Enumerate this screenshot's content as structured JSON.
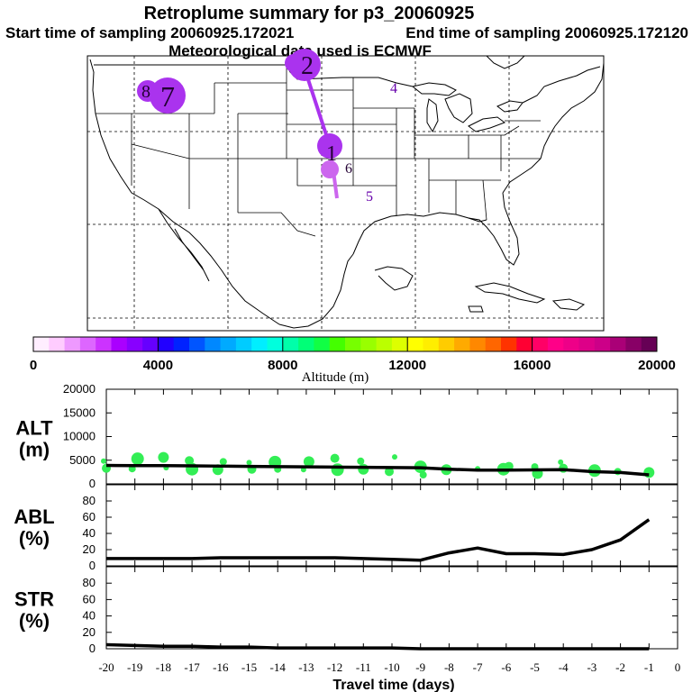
{
  "header": {
    "title": "Retroplume summary for p3_20060925",
    "start_sampling": "Start time of sampling 20060925.172021",
    "end_sampling": "End time of sampling 20060925.172120",
    "met_data": "Meteorological data used is ECMWF"
  },
  "colors": {
    "line": "#000000",
    "alt_points": "#33ee55",
    "plume": "#aa33ee",
    "plume_light": "#cc66ee"
  },
  "map": {
    "plume_labels": [
      {
        "id": "1",
        "color": "#aa33ee"
      },
      {
        "id": "2",
        "color": "#aa33ee"
      },
      {
        "id": "4",
        "color": "#aa33ee"
      },
      {
        "id": "5",
        "color": "#aa33ee"
      },
      {
        "id": "6",
        "color": "#aa33ee"
      },
      {
        "id": "7",
        "color": "#aa33ee"
      },
      {
        "id": "8",
        "color": "#aa33ee"
      }
    ]
  },
  "colorbar": {
    "label": "Altitude (m)",
    "min": 0,
    "max": 20000,
    "ticks": [
      "0",
      "4000",
      "8000",
      "12000",
      "16000",
      "20000"
    ],
    "colors": [
      "#ffeeff",
      "#ffccff",
      "#ee99ff",
      "#dd66ff",
      "#cc33ff",
      "#aa00ff",
      "#8800ff",
      "#6600ff",
      "#2200ff",
      "#0022ff",
      "#0055ff",
      "#0088ff",
      "#00aaff",
      "#00ccff",
      "#00eeff",
      "#00ffdd",
      "#00ffaa",
      "#00ff77",
      "#11ff44",
      "#44ff00",
      "#77ff00",
      "#99ff00",
      "#bbff00",
      "#ddff00",
      "#ffff00",
      "#ffee00",
      "#ffcc00",
      "#ffaa00",
      "#ff8800",
      "#ff6600",
      "#ff3300",
      "#ff0033",
      "#ff0066",
      "#ff0088",
      "#ee0088",
      "#dd0088",
      "#cc0088",
      "#aa0077",
      "#880066",
      "#660055"
    ]
  },
  "chart_data": [
    {
      "type": "line",
      "title": "ALT",
      "ylabel": "ALT (m)",
      "ylabel_lines": [
        "ALT",
        "(m)"
      ],
      "xlabel": "Travel time (days)",
      "ylim": [
        0,
        20000
      ],
      "yticks": [
        0,
        5000,
        10000,
        15000,
        20000
      ],
      "series": [
        {
          "name": "mean altitude",
          "x": [
            -20,
            -19,
            -18,
            -17,
            -16,
            -15,
            -14,
            -13,
            -12,
            -11,
            -10,
            -9,
            -8,
            -7,
            -6,
            -5,
            -4,
            -3,
            -2,
            -1
          ],
          "values": [
            3900,
            3850,
            3850,
            3800,
            3750,
            3700,
            3650,
            3600,
            3550,
            3500,
            3450,
            3400,
            3100,
            2900,
            2900,
            2950,
            3000,
            2600,
            2400,
            1900
          ]
        },
        {
          "name": "altitude scatter",
          "type": "scatter",
          "x": [
            -20,
            -20,
            -19,
            -19,
            -18,
            -18,
            -17,
            -17,
            -16,
            -16,
            -15,
            -15,
            -14,
            -14,
            -13,
            -13,
            -12,
            -12,
            -11,
            -11,
            -10,
            -10,
            -9,
            -9,
            -8,
            -7,
            -6,
            -6,
            -5,
            -5,
            -4,
            -4,
            -3,
            -2,
            -1
          ],
          "values": [
            4800,
            3300,
            5300,
            3200,
            5600,
            3400,
            4900,
            3100,
            4700,
            3000,
            4500,
            3100,
            4600,
            3100,
            4700,
            3000,
            5400,
            3000,
            4800,
            3100,
            5700,
            2600,
            3600,
            1900,
            3000,
            3200,
            3700,
            3100,
            3600,
            2200,
            4600,
            3300,
            2800,
            2600,
            2400
          ]
        }
      ]
    },
    {
      "type": "line",
      "title": "ABL",
      "ylabel": "ABL (%)",
      "ylabel_lines": [
        "ABL",
        "(%)"
      ],
      "ylim": [
        0,
        100
      ],
      "yticks": [
        0,
        20,
        40,
        60,
        80
      ],
      "series": [
        {
          "name": "ABL fraction",
          "x": [
            -20,
            -19,
            -18,
            -17,
            -16,
            -15,
            -14,
            -13,
            -12,
            -11,
            -10,
            -9,
            -8,
            -7,
            -6,
            -5,
            -4,
            -3,
            -2,
            -1
          ],
          "values": [
            9,
            9,
            9,
            9,
            10,
            10,
            10,
            10,
            10,
            9,
            8,
            7,
            16,
            22,
            15,
            15,
            14,
            20,
            32,
            57
          ]
        }
      ]
    },
    {
      "type": "line",
      "title": "STR",
      "ylabel": "STR (%)",
      "ylabel_lines": [
        "STR",
        "(%)"
      ],
      "xlabel": "Travel time (days)",
      "xlim": [
        -20,
        0
      ],
      "xticks": [
        "-20",
        "-19",
        "-18",
        "-17",
        "-16",
        "-15",
        "-14",
        "-13",
        "-12",
        "-11",
        "-10",
        "-9",
        "-8",
        "-7",
        "-6",
        "-5",
        "-4",
        "-3",
        "-2",
        "-1",
        "0"
      ],
      "ylim": [
        0,
        100
      ],
      "yticks": [
        0,
        20,
        40,
        60,
        80
      ],
      "series": [
        {
          "name": "stratospheric fraction",
          "x": [
            -20,
            -19,
            -18,
            -17,
            -16,
            -15,
            -14,
            -13,
            -12,
            -11,
            -10,
            -9,
            -8,
            -7,
            -6,
            -5,
            -4,
            -3,
            -2,
            -1
          ],
          "values": [
            5,
            4,
            3,
            3,
            2,
            2,
            1,
            1,
            1,
            1,
            1,
            0,
            0,
            0,
            0,
            0,
            0,
            0,
            0,
            0
          ]
        }
      ]
    }
  ]
}
